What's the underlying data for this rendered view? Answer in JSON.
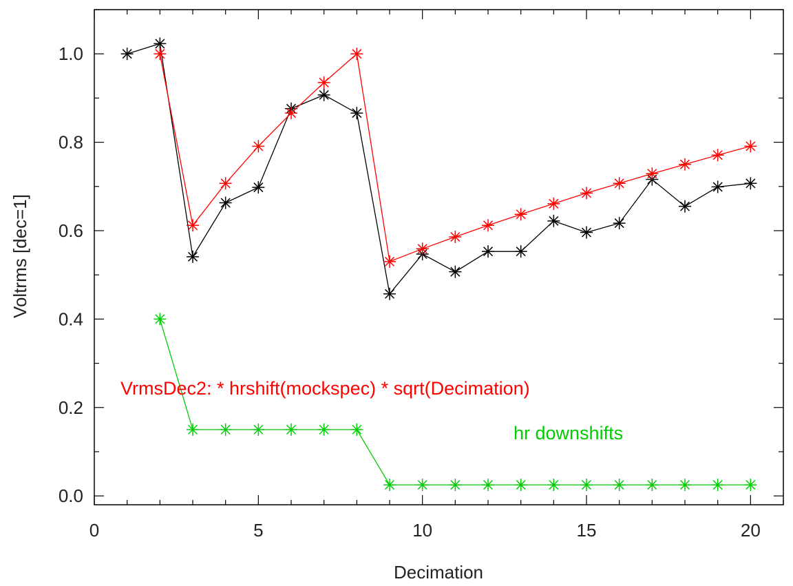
{
  "chart_data": {
    "type": "line",
    "title": "",
    "xlabel": "Decimation",
    "ylabel": "Voltrms [dec=1]",
    "xlim": [
      0,
      21
    ],
    "ylim": [
      -0.02,
      1.1
    ],
    "x_ticks": [
      0,
      5,
      10,
      15,
      20
    ],
    "x_tick_labels": [
      "0",
      "5",
      "10",
      "15",
      "20"
    ],
    "y_ticks": [
      0.0,
      0.2,
      0.4,
      0.6,
      0.8,
      1.0
    ],
    "y_tick_labels": [
      "0.0",
      "0.2",
      "0.4",
      "0.6",
      "0.8",
      "1.0"
    ],
    "x_minor_step": 1,
    "y_minor_step": 0.1,
    "grid": false,
    "marker": "asterisk",
    "series": [
      {
        "color": "#000000",
        "x": [
          1,
          2,
          3,
          4,
          5,
          6,
          7,
          8,
          9,
          10,
          11,
          12,
          13,
          14,
          15,
          16,
          17,
          18,
          19,
          20
        ],
        "y": [
          1.0,
          1.023,
          0.541,
          0.663,
          0.698,
          0.876,
          0.907,
          0.866,
          0.457,
          0.547,
          0.507,
          0.553,
          0.553,
          0.622,
          0.596,
          0.617,
          0.716,
          0.655,
          0.699,
          0.707
        ]
      },
      {
        "color": "#ff0000",
        "x": [
          2,
          3,
          4,
          5,
          6,
          7,
          8,
          9,
          10,
          11,
          12,
          13,
          14,
          15,
          16,
          17,
          18,
          19,
          20
        ],
        "y": [
          1.0,
          0.612,
          0.707,
          0.791,
          0.866,
          0.935,
          1.0,
          0.53,
          0.559,
          0.586,
          0.612,
          0.637,
          0.661,
          0.685,
          0.707,
          0.729,
          0.75,
          0.771,
          0.791
        ]
      },
      {
        "color": "#00cc00",
        "x": [
          2,
          3,
          4,
          5,
          6,
          7,
          8,
          9,
          10,
          11,
          12,
          13,
          14,
          15,
          16,
          17,
          18,
          19,
          20
        ],
        "y": [
          0.4,
          0.15,
          0.15,
          0.15,
          0.15,
          0.15,
          0.15,
          0.025,
          0.025,
          0.025,
          0.025,
          0.025,
          0.025,
          0.025,
          0.025,
          0.025,
          0.025,
          0.025,
          0.025
        ]
      }
    ],
    "annotations": [
      {
        "text": "VrmsDec2: * hrshift(mockspec) * sqrt(Decimation)",
        "color": "#ff0000"
      },
      {
        "text": "hr downshifts",
        "color": "#00cc00"
      }
    ]
  }
}
